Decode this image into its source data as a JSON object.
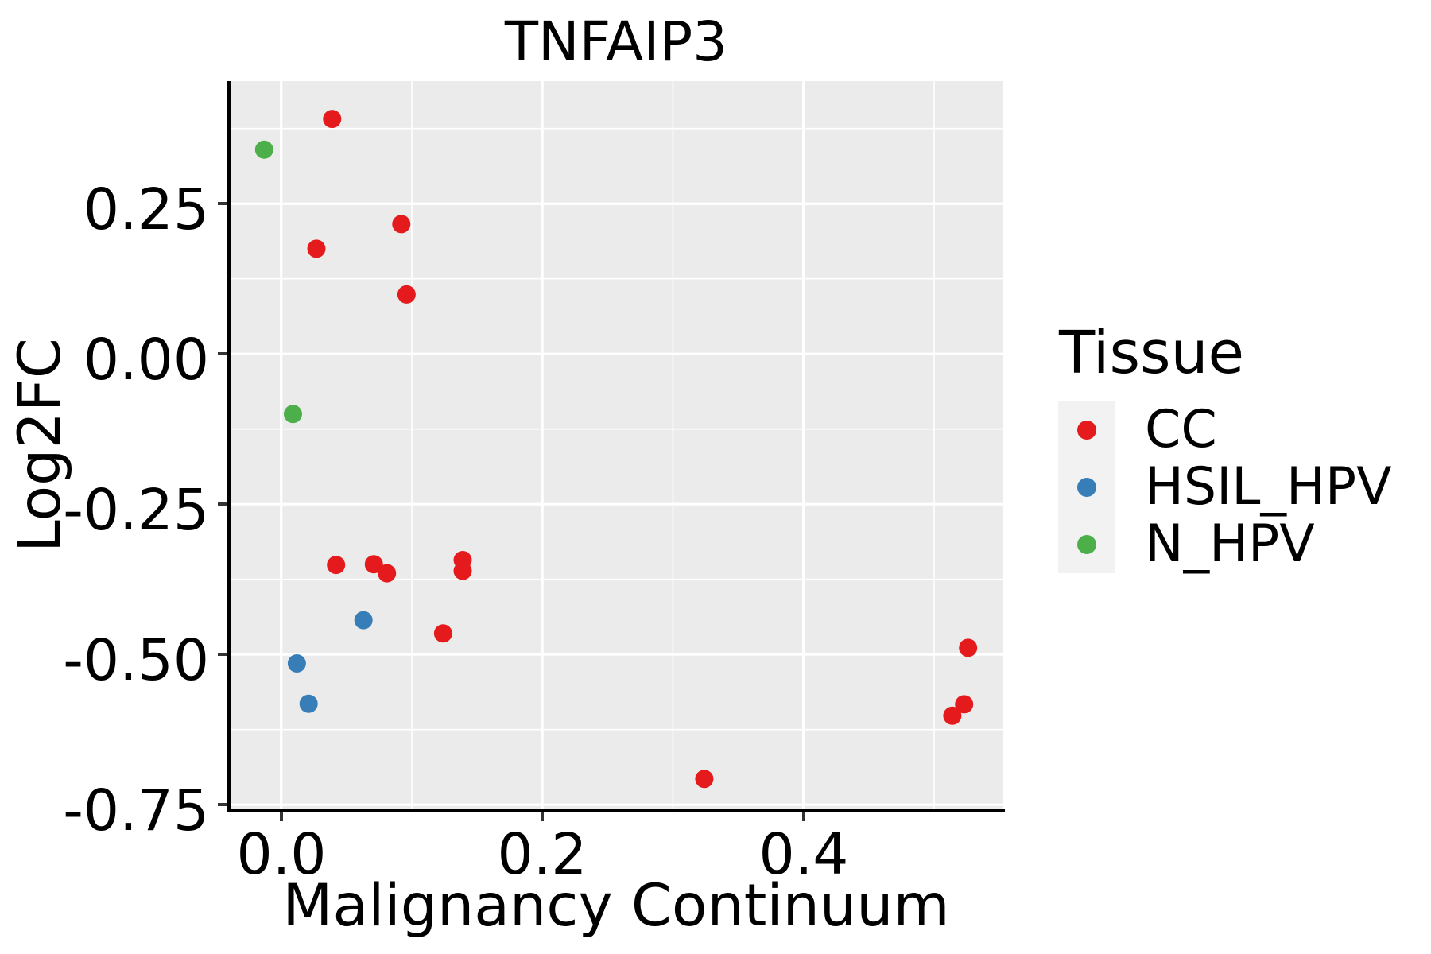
{
  "figure": {
    "title": "TNFAIP3"
  },
  "x_axis": {
    "label": "Malignancy Continuum",
    "tick_labels": [
      "0.0",
      "0.2",
      "0.4"
    ],
    "tick_values": [
      0.0,
      0.2,
      0.4
    ],
    "minor_tick_values": [
      0.1,
      0.3,
      0.5
    ]
  },
  "y_axis": {
    "label": "Log2FC",
    "tick_labels": [
      "0.25",
      "0.00",
      "-0.25",
      "-0.50",
      "-0.75"
    ],
    "tick_values": [
      0.25,
      0.0,
      -0.25,
      -0.5,
      -0.75
    ],
    "minor_tick_values": [
      0.375,
      0.125,
      -0.125,
      -0.375,
      -0.625
    ]
  },
  "legend": {
    "title": "Tissue",
    "entries": [
      {
        "label": "CC",
        "color": "#E41A1C"
      },
      {
        "label": "HSIL_HPV",
        "color": "#377EB8"
      },
      {
        "label": "N_HPV",
        "color": "#4DAF4A"
      }
    ]
  },
  "chart_data": {
    "type": "scatter",
    "title": "TNFAIP3",
    "xlabel": "Malignancy Continuum",
    "ylabel": "Log2FC",
    "xlim": [
      -0.04,
      0.553
    ],
    "ylim": [
      -0.759,
      0.454
    ],
    "grid": true,
    "gridlines": {
      "x_major": [
        0.0,
        0.2,
        0.4
      ],
      "x_minor": [
        0.1,
        0.3,
        0.5
      ],
      "y_major": [
        0.25,
        0.0,
        -0.25,
        -0.5,
        -0.75
      ],
      "y_minor": [
        0.375,
        0.125,
        -0.125,
        -0.375,
        -0.625
      ]
    },
    "legend_position": "right",
    "series": [
      {
        "name": "CC",
        "color": "#E41A1C",
        "points": [
          [
            0.039,
            0.391
          ],
          [
            0.092,
            0.216
          ],
          [
            0.027,
            0.175
          ],
          [
            0.096,
            0.099
          ],
          [
            0.042,
            -0.351
          ],
          [
            0.071,
            -0.35
          ],
          [
            0.081,
            -0.365
          ],
          [
            0.139,
            -0.343
          ],
          [
            0.139,
            -0.361
          ],
          [
            0.124,
            -0.465
          ],
          [
            0.324,
            -0.707
          ],
          [
            0.514,
            -0.602
          ],
          [
            0.523,
            -0.583
          ],
          [
            0.526,
            -0.489
          ]
        ]
      },
      {
        "name": "HSIL_HPV",
        "color": "#377EB8",
        "points": [
          [
            0.063,
            -0.443
          ],
          [
            0.012,
            -0.515
          ],
          [
            0.021,
            -0.582
          ]
        ]
      },
      {
        "name": "N_HPV",
        "color": "#4DAF4A",
        "points": [
          [
            -0.013,
            0.34
          ],
          [
            0.009,
            -0.1
          ]
        ]
      }
    ]
  },
  "style": {
    "panel_bg": "#EBEBEB",
    "gridline_color": "#FFFFFF",
    "legend_key_bg": "#F2F2F2",
    "axis_line_color": "#000000",
    "tick_mark_color": "#333333",
    "text_color": "#000000"
  }
}
